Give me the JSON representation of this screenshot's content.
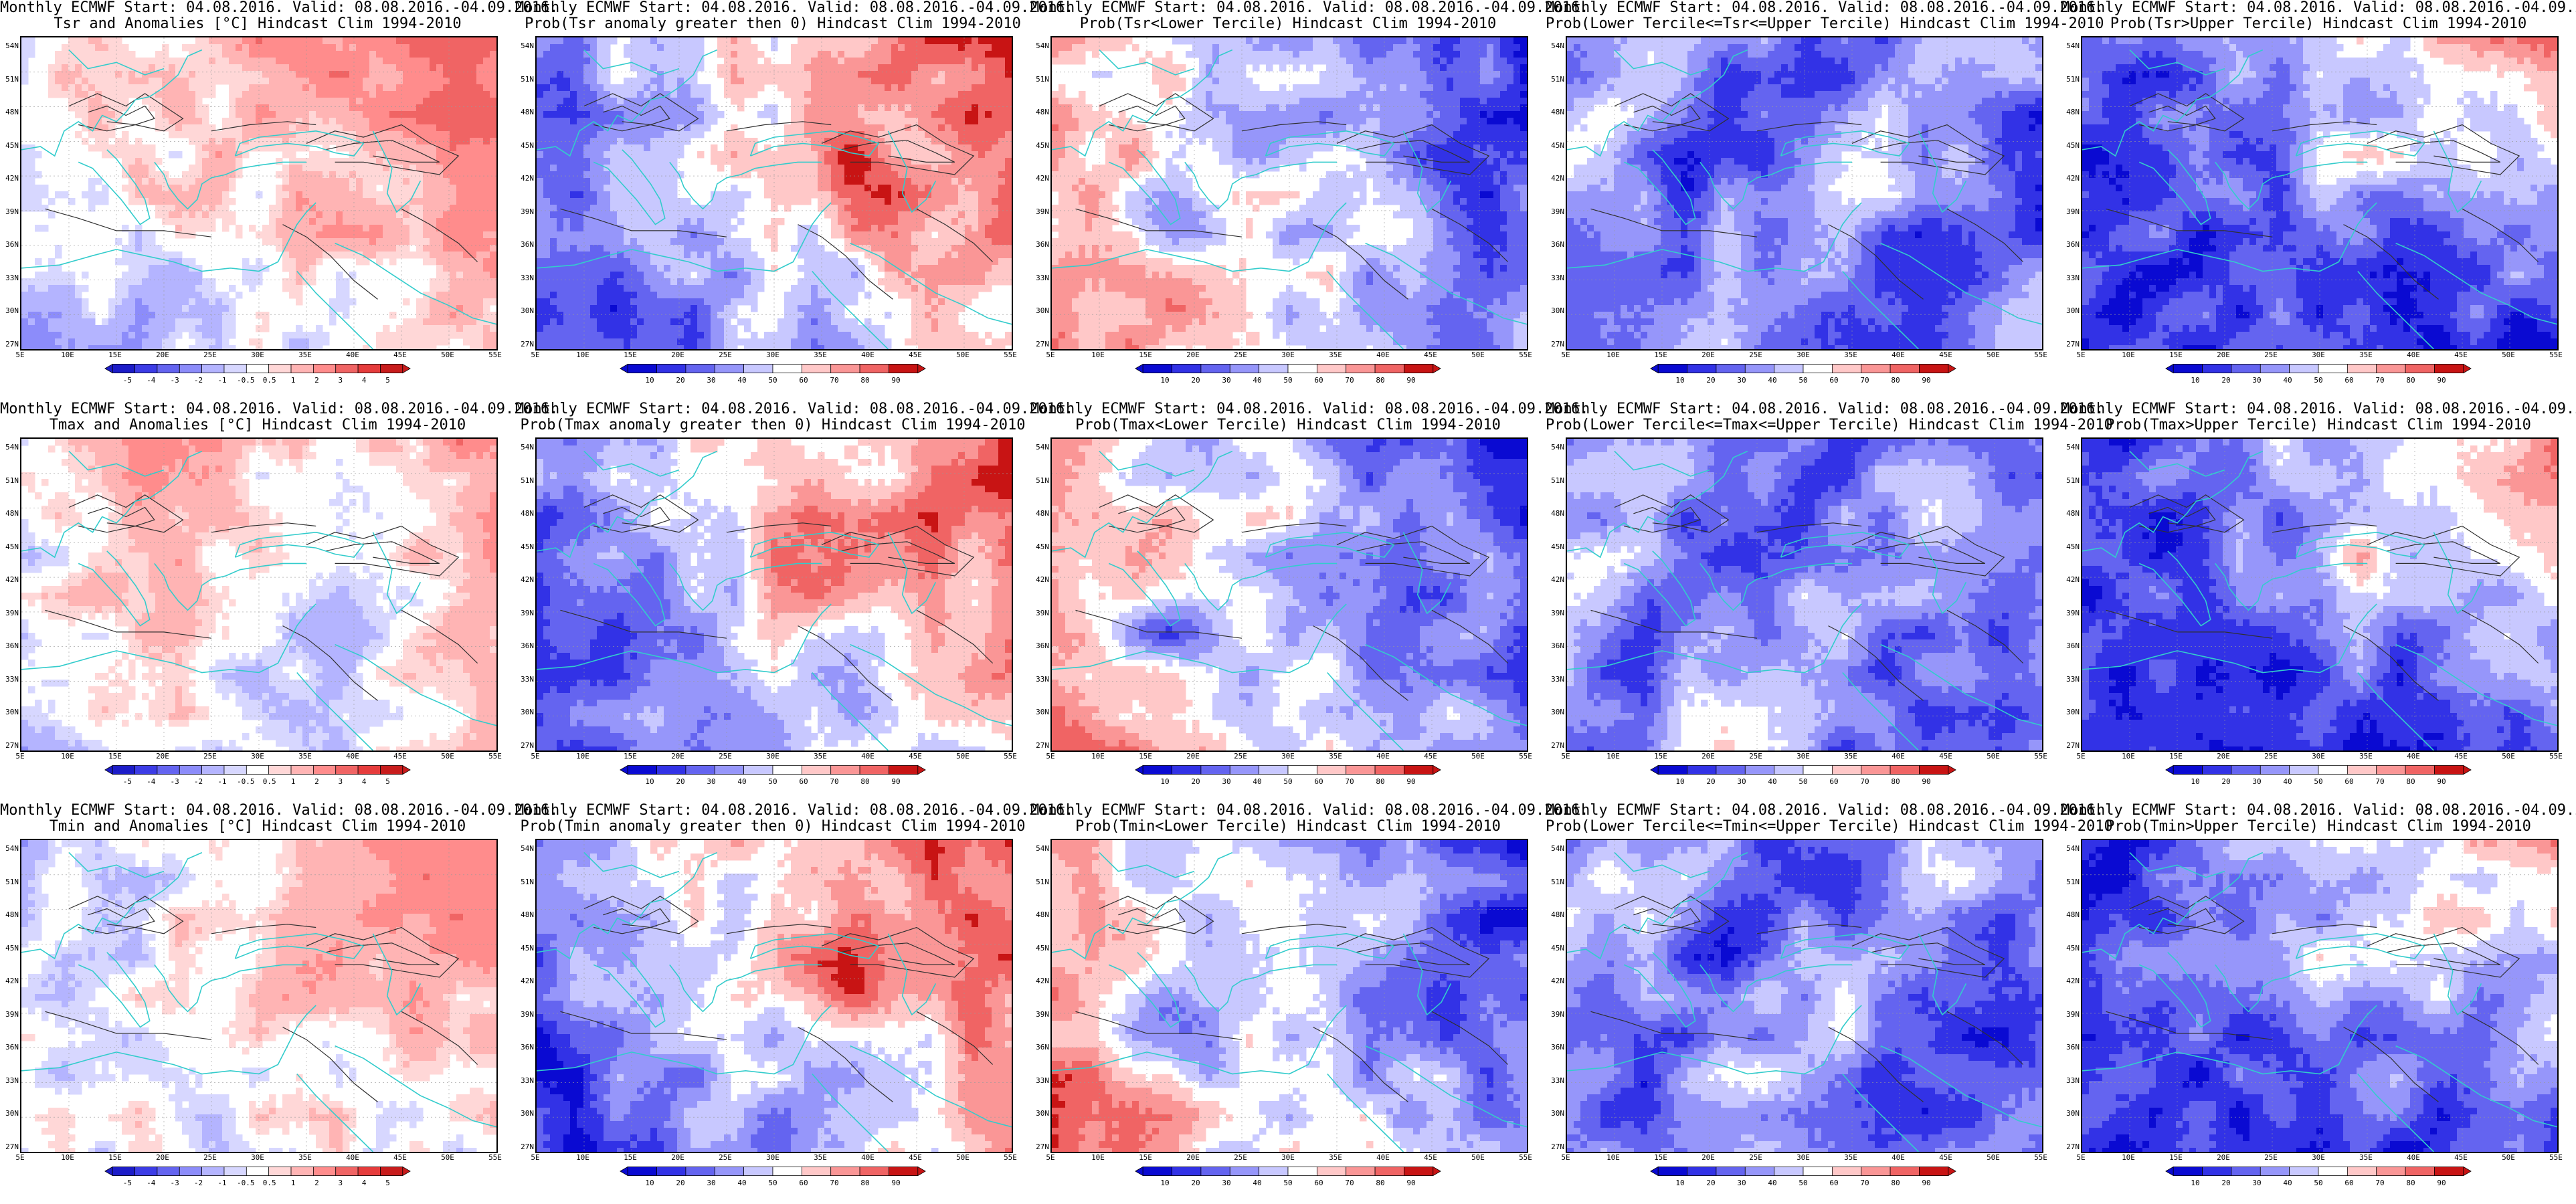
{
  "figure": {
    "header_line1": "Monthly ECMWF Start: 04.08.2016. Valid: 08.08.2016.-04.09.2016.",
    "lat_ticks": [
      "54N",
      "51N",
      "48N",
      "45N",
      "42N",
      "39N",
      "36N",
      "33N",
      "30N",
      "27N"
    ],
    "lon_ticks": [
      "5E",
      "10E",
      "15E",
      "20E",
      "25E",
      "30E",
      "35E",
      "40E",
      "45E",
      "50E",
      "55E"
    ],
    "anomaly_scale": [
      "-5",
      "-4",
      "-3",
      "-2",
      "-1",
      "-0.5",
      "0.5",
      "1",
      "2",
      "3",
      "4",
      "5"
    ],
    "prob_scale": [
      "10",
      "20",
      "30",
      "40",
      "50",
      "60",
      "70",
      "80",
      "90"
    ],
    "colors": {
      "coast": "#33cccc",
      "contour": "#303030",
      "anom_neg": [
        "#1c1cc8",
        "#3c3ce6",
        "#6464f0",
        "#8c8cfa",
        "#b4b4ff",
        "#d7d7ff"
      ],
      "anom_pos": [
        "#ffd7d7",
        "#ffb4b4",
        "#ff8c8c",
        "#f06464",
        "#e63c3c",
        "#c81c1c"
      ],
      "prob": [
        "#0a0ad2",
        "#3232e6",
        "#6464f0",
        "#9696fa",
        "#c8c8ff",
        "#ffffff",
        "#ffc8c8",
        "#fa9696",
        "#f06464",
        "#c81414"
      ]
    }
  },
  "panels": [
    {
      "title2": "Tsr and Anomalies [°C] Hindcast Clim 1994-2010",
      "kind": "anom",
      "pattern": "tsr"
    },
    {
      "title2": "Prob(Tsr anomaly greater then 0) Hindcast Clim 1994-2010",
      "kind": "prob",
      "pattern": "warm"
    },
    {
      "title2": "Prob(Tsr<Lower Tercile) Hindcast Clim 1994-2010",
      "kind": "prob",
      "pattern": "cold"
    },
    {
      "title2": "Prob(Lower Tercile<=Tsr<=Upper Tercile) Hindcast Clim 1994-2010",
      "kind": "prob",
      "pattern": "mid"
    },
    {
      "title2": "Prob(Tsr>Upper Tercile) Hindcast Clim 1994-2010",
      "kind": "prob",
      "pattern": "upper"
    },
    {
      "title2": "Tmax and Anomalies [°C] Hindcast Clim 1994-2010",
      "kind": "anom",
      "pattern": "tmax"
    },
    {
      "title2": "Prob(Tmax anomaly greater then 0) Hindcast Clim 1994-2010",
      "kind": "prob",
      "pattern": "warm"
    },
    {
      "title2": "Prob(Tmax<Lower Tercile) Hindcast Clim 1994-2010",
      "kind": "prob",
      "pattern": "cold"
    },
    {
      "title2": "Prob(Lower Tercile<=Tmax<=Upper Tercile) Hindcast Clim 1994-2010",
      "kind": "prob",
      "pattern": "mid"
    },
    {
      "title2": "Prob(Tmax>Upper Tercile) Hindcast Clim 1994-2010",
      "kind": "prob",
      "pattern": "upper"
    },
    {
      "title2": "Tmin and Anomalies [°C] Hindcast Clim 1994-2010",
      "kind": "anom",
      "pattern": "tmin"
    },
    {
      "title2": "Prob(Tmin anomaly greater then 0) Hindcast Clim 1994-2010",
      "kind": "prob",
      "pattern": "warm"
    },
    {
      "title2": "Prob(Tmin<Lower Tercile) Hindcast Clim 1994-2010",
      "kind": "prob",
      "pattern": "cold"
    },
    {
      "title2": "Prob(Lower Tercile<=Tmin<=Upper Tercile) Hindcast Clim 1994-2010",
      "kind": "prob",
      "pattern": "mid"
    },
    {
      "title2": "Prob(Tmin>Upper Tercile) Hindcast Clim 1994-2010",
      "kind": "prob",
      "pattern": "upper"
    }
  ]
}
